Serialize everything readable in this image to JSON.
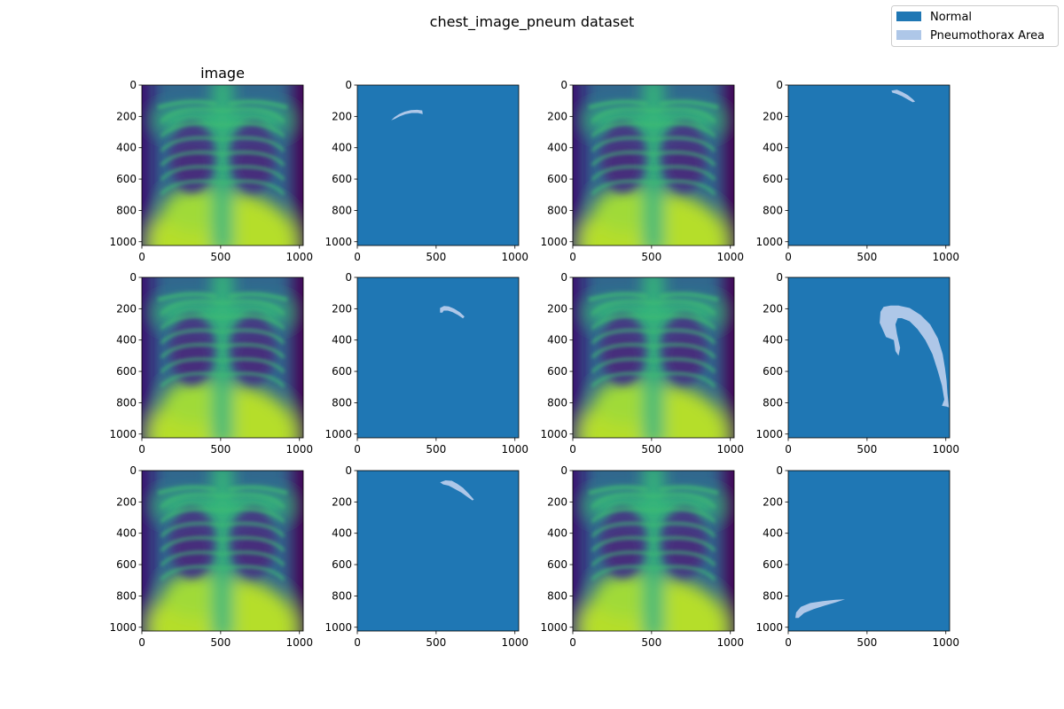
{
  "figure": {
    "title": "chest_image_pneum dataset",
    "legend": {
      "placement": "top-right",
      "entries": [
        {
          "label": "Normal",
          "color": "#1f77b4"
        },
        {
          "label": "Pneumothorax Area",
          "color": "#aec7e8"
        }
      ]
    }
  },
  "chart_data": {
    "type": "heatmap",
    "layout": {
      "rows": 3,
      "cols": 4
    },
    "colors": {
      "mask_background": "#1f77b4",
      "mask_area": "#aec7e8"
    },
    "axes": {
      "xlim": [
        0,
        1024
      ],
      "ylim": [
        1024,
        0
      ],
      "x_ticks": [
        0,
        500,
        1000
      ],
      "y_ticks": [
        0,
        200,
        400,
        600,
        800,
        1000
      ]
    },
    "panels": [
      {
        "kind": "image",
        "title": "image"
      },
      {
        "kind": "mask",
        "title": "",
        "area_outline": [
          [
            215,
            225
          ],
          [
            235,
            205
          ],
          [
            265,
            185
          ],
          [
            300,
            170
          ],
          [
            340,
            160
          ],
          [
            380,
            158
          ],
          [
            412,
            162
          ],
          [
            415,
            185
          ],
          [
            385,
            178
          ],
          [
            345,
            178
          ],
          [
            305,
            186
          ],
          [
            268,
            200
          ],
          [
            240,
            215
          ]
        ]
      },
      {
        "kind": "image",
        "title": ""
      },
      {
        "kind": "mask",
        "title": "",
        "area_outline": [
          [
            655,
            35
          ],
          [
            690,
            30
          ],
          [
            725,
            45
          ],
          [
            760,
            65
          ],
          [
            790,
            90
          ],
          [
            805,
            105
          ],
          [
            790,
            110
          ],
          [
            755,
            90
          ],
          [
            720,
            70
          ],
          [
            685,
            55
          ],
          [
            660,
            48
          ]
        ]
      },
      {
        "kind": "image",
        "title": ""
      },
      {
        "kind": "mask",
        "title": "",
        "area_outline": [
          [
            525,
            225
          ],
          [
            525,
            195
          ],
          [
            550,
            182
          ],
          [
            580,
            185
          ],
          [
            615,
            200
          ],
          [
            650,
            222
          ],
          [
            680,
            250
          ],
          [
            670,
            262
          ],
          [
            638,
            240
          ],
          [
            605,
            222
          ],
          [
            575,
            212
          ],
          [
            548,
            212
          ],
          [
            540,
            225
          ]
        ]
      },
      {
        "kind": "image",
        "title": ""
      },
      {
        "kind": "mask",
        "title": "",
        "area_outline": [
          [
            580,
            290
          ],
          [
            585,
            220
          ],
          [
            605,
            188
          ],
          [
            650,
            180
          ],
          [
            700,
            180
          ],
          [
            770,
            195
          ],
          [
            840,
            240
          ],
          [
            900,
            300
          ],
          [
            950,
            390
          ],
          [
            980,
            490
          ],
          [
            995,
            580
          ],
          [
            1005,
            660
          ],
          [
            1010,
            740
          ],
          [
            1020,
            830
          ],
          [
            1005,
            825
          ],
          [
            975,
            820
          ],
          [
            990,
            780
          ],
          [
            975,
            690
          ],
          [
            950,
            600
          ],
          [
            915,
            490
          ],
          [
            870,
            400
          ],
          [
            820,
            330
          ],
          [
            770,
            280
          ],
          [
            720,
            260
          ],
          [
            695,
            260
          ],
          [
            680,
            300
          ],
          [
            690,
            360
          ],
          [
            710,
            450
          ],
          [
            700,
            500
          ],
          [
            680,
            470
          ],
          [
            670,
            400
          ],
          [
            620,
            380
          ]
        ]
      },
      {
        "kind": "image",
        "title": ""
      },
      {
        "kind": "mask",
        "title": "",
        "area_outline": [
          [
            525,
            75
          ],
          [
            560,
            62
          ],
          [
            600,
            65
          ],
          [
            635,
            85
          ],
          [
            670,
            110
          ],
          [
            705,
            145
          ],
          [
            740,
            185
          ],
          [
            730,
            190
          ],
          [
            695,
            165
          ],
          [
            660,
            140
          ],
          [
            620,
            118
          ],
          [
            580,
            96
          ],
          [
            545,
            88
          ]
        ]
      },
      {
        "kind": "image",
        "title": ""
      },
      {
        "kind": "mask",
        "title": "",
        "area_outline": [
          [
            45,
            940
          ],
          [
            50,
            905
          ],
          [
            80,
            870
          ],
          [
            140,
            845
          ],
          [
            220,
            833
          ],
          [
            300,
            825
          ],
          [
            360,
            822
          ],
          [
            300,
            842
          ],
          [
            230,
            862
          ],
          [
            160,
            885
          ],
          [
            100,
            910
          ],
          [
            65,
            940
          ]
        ]
      }
    ]
  }
}
